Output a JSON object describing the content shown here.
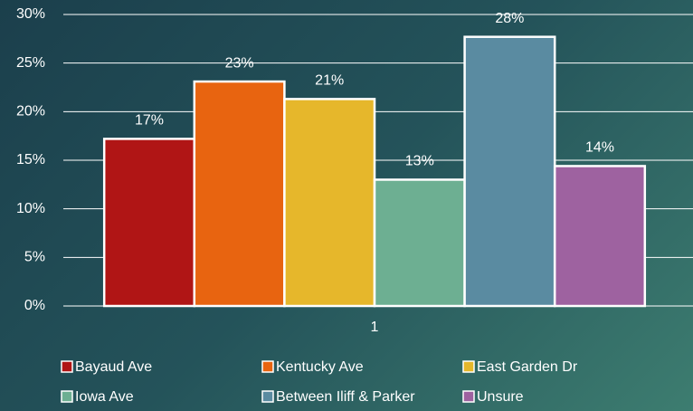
{
  "chart_data": {
    "type": "bar",
    "categories": [
      "1"
    ],
    "series": [
      {
        "name": "Bayaud Ave",
        "color": "#b01515",
        "values": [
          17.2
        ],
        "value_labels": [
          "17%"
        ]
      },
      {
        "name": "Kentucky Ave",
        "color": "#e86410",
        "values": [
          23.1
        ],
        "value_labels": [
          "23%"
        ]
      },
      {
        "name": "East Garden Dr",
        "color": "#e6b72b",
        "values": [
          21.3
        ],
        "value_labels": [
          "21%"
        ]
      },
      {
        "name": "Iowa Ave",
        "color": "#6daf92",
        "values": [
          13.0
        ],
        "value_labels": [
          "13%"
        ]
      },
      {
        "name": "Between Iliff & Parker",
        "color": "#5a8ba1",
        "values": [
          27.7
        ],
        "value_labels": [
          "28%"
        ]
      },
      {
        "name": "Unsure",
        "color": "#9e62a0",
        "values": [
          14.4
        ],
        "value_labels": [
          "14%"
        ]
      }
    ],
    "ylim": [
      0,
      30
    ],
    "yticks": [
      {
        "value": 0,
        "label": "0%"
      },
      {
        "value": 5,
        "label": "5%"
      },
      {
        "value": 10,
        "label": "10%"
      },
      {
        "value": 15,
        "label": "15%"
      },
      {
        "value": 20,
        "label": "20%"
      },
      {
        "value": 25,
        "label": "25%"
      },
      {
        "value": 30,
        "label": "30%"
      }
    ],
    "grid": true
  }
}
